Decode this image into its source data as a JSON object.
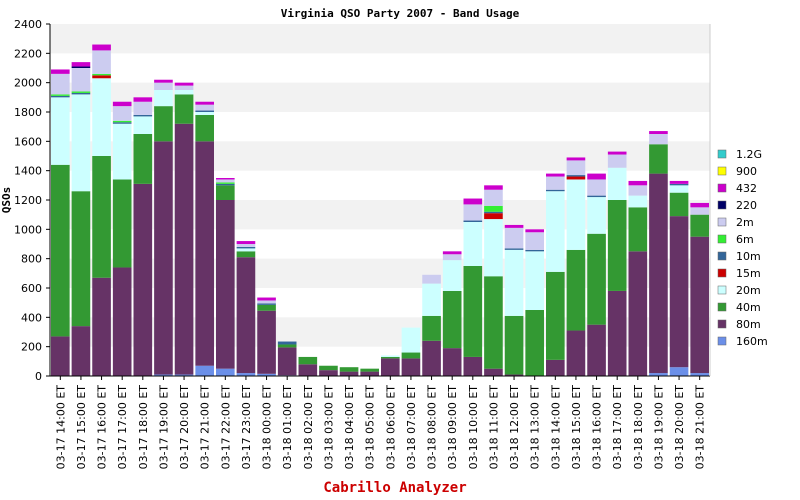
{
  "chart_data": {
    "type": "bar",
    "stacked": true,
    "title": "Virginia QSO Party 2007 - Band Usage",
    "xlabel": "",
    "ylabel": "QSOs",
    "ylim": [
      0,
      2400
    ],
    "yticks": [
      0,
      200,
      400,
      600,
      800,
      1000,
      1200,
      1400,
      1600,
      1800,
      2000,
      2200,
      2400
    ],
    "grid": "alternating horizontal bands",
    "legend_position": "right",
    "categories": [
      "03-17 14:00 ET",
      "03-17 15:00 ET",
      "03-17 16:00 ET",
      "03-17 17:00 ET",
      "03-17 18:00 ET",
      "03-17 19:00 ET",
      "03-17 20:00 ET",
      "03-17 21:00 ET",
      "03-17 22:00 ET",
      "03-17 23:00 ET",
      "03-18 00:00 ET",
      "03-18 01:00 ET",
      "03-18 02:00 ET",
      "03-18 03:00 ET",
      "03-18 04:00 ET",
      "03-18 05:00 ET",
      "03-18 06:00 ET",
      "03-18 07:00 ET",
      "03-18 08:00 ET",
      "03-18 09:00 ET",
      "03-18 10:00 ET",
      "03-18 11:00 ET",
      "03-18 12:00 ET",
      "03-18 13:00 ET",
      "03-18 14:00 ET",
      "03-18 15:00 ET",
      "03-18 16:00 ET",
      "03-18 17:00 ET",
      "03-18 18:00 ET",
      "03-18 19:00 ET",
      "03-18 20:00 ET",
      "03-18 21:00 ET"
    ],
    "series": [
      {
        "name": "160m",
        "color": "#6b8fe8",
        "values": [
          0,
          0,
          0,
          0,
          0,
          10,
          10,
          70,
          50,
          20,
          15,
          5,
          0,
          0,
          0,
          0,
          0,
          0,
          0,
          0,
          0,
          0,
          0,
          0,
          0,
          0,
          0,
          0,
          0,
          20,
          60,
          20
        ]
      },
      {
        "name": "80m",
        "color": "#663366",
        "values": [
          270,
          340,
          670,
          740,
          1310,
          1590,
          1710,
          1530,
          1150,
          790,
          430,
          190,
          80,
          40,
          30,
          30,
          120,
          120,
          240,
          190,
          130,
          50,
          10,
          0,
          110,
          310,
          350,
          580,
          850,
          1360,
          1030,
          930
        ]
      },
      {
        "name": "40m",
        "color": "#339933",
        "values": [
          1170,
          920,
          830,
          600,
          340,
          240,
          200,
          180,
          100,
          40,
          40,
          20,
          50,
          30,
          30,
          20,
          10,
          40,
          170,
          390,
          620,
          630,
          400,
          450,
          600,
          550,
          620,
          620,
          300,
          200,
          160,
          150
        ]
      },
      {
        "name": "20m",
        "color": "#ccffff",
        "values": [
          460,
          660,
          530,
          380,
          120,
          110,
          30,
          20,
          0,
          20,
          0,
          0,
          0,
          0,
          0,
          0,
          10,
          170,
          220,
          210,
          300,
          390,
          450,
          400,
          550,
          480,
          250,
          220,
          80,
          0,
          50,
          0
        ]
      },
      {
        "name": "15m",
        "color": "#cc0000",
        "values": [
          0,
          0,
          20,
          0,
          0,
          0,
          0,
          0,
          0,
          0,
          0,
          0,
          0,
          0,
          0,
          0,
          0,
          0,
          0,
          0,
          0,
          40,
          0,
          0,
          0,
          20,
          0,
          0,
          0,
          0,
          0,
          0
        ]
      },
      {
        "name": "10m",
        "color": "#336699",
        "values": [
          10,
          10,
          0,
          10,
          10,
          0,
          0,
          10,
          10,
          10,
          10,
          20,
          0,
          0,
          0,
          0,
          0,
          0,
          0,
          0,
          10,
          10,
          10,
          10,
          10,
          10,
          10,
          0,
          0,
          0,
          10,
          0
        ]
      },
      {
        "name": "6m",
        "color": "#33ee33",
        "values": [
          10,
          10,
          10,
          10,
          0,
          0,
          0,
          0,
          10,
          0,
          0,
          0,
          0,
          0,
          0,
          0,
          0,
          0,
          0,
          0,
          0,
          40,
          0,
          0,
          0,
          0,
          0,
          0,
          0,
          0,
          0,
          0
        ]
      },
      {
        "name": "2m",
        "color": "#ccccf0",
        "values": [
          140,
          160,
          160,
          100,
          90,
          50,
          30,
          40,
          20,
          20,
          20,
          0,
          0,
          0,
          0,
          0,
          0,
          0,
          60,
          40,
          110,
          110,
          140,
          120,
          90,
          100,
          110,
          90,
          70,
          70,
          0,
          50
        ]
      },
      {
        "name": "220",
        "color": "#000066",
        "values": [
          0,
          10,
          0,
          0,
          0,
          0,
          0,
          0,
          0,
          0,
          0,
          0,
          0,
          0,
          0,
          0,
          0,
          0,
          0,
          0,
          0,
          0,
          0,
          0,
          0,
          0,
          0,
          0,
          0,
          0,
          0,
          0
        ]
      },
      {
        "name": "432",
        "color": "#cc00cc",
        "values": [
          30,
          30,
          40,
          30,
          30,
          20,
          20,
          20,
          10,
          20,
          20,
          0,
          0,
          0,
          0,
          0,
          0,
          0,
          0,
          20,
          40,
          30,
          20,
          20,
          20,
          20,
          40,
          20,
          30,
          20,
          20,
          30
        ]
      },
      {
        "name": "900",
        "color": "#ffff00",
        "values": [
          0,
          0,
          0,
          0,
          0,
          0,
          0,
          0,
          0,
          0,
          0,
          0,
          0,
          0,
          0,
          0,
          0,
          0,
          0,
          0,
          0,
          0,
          0,
          0,
          0,
          0,
          0,
          0,
          0,
          0,
          0,
          0
        ]
      },
      {
        "name": "1.2G",
        "color": "#33cccc",
        "values": [
          0,
          0,
          0,
          0,
          0,
          0,
          0,
          0,
          0,
          0,
          0,
          0,
          0,
          0,
          0,
          0,
          0,
          0,
          0,
          0,
          0,
          0,
          0,
          0,
          0,
          0,
          0,
          0,
          0,
          0,
          0,
          0
        ]
      }
    ],
    "footer": "Cabrillo Analyzer"
  }
}
